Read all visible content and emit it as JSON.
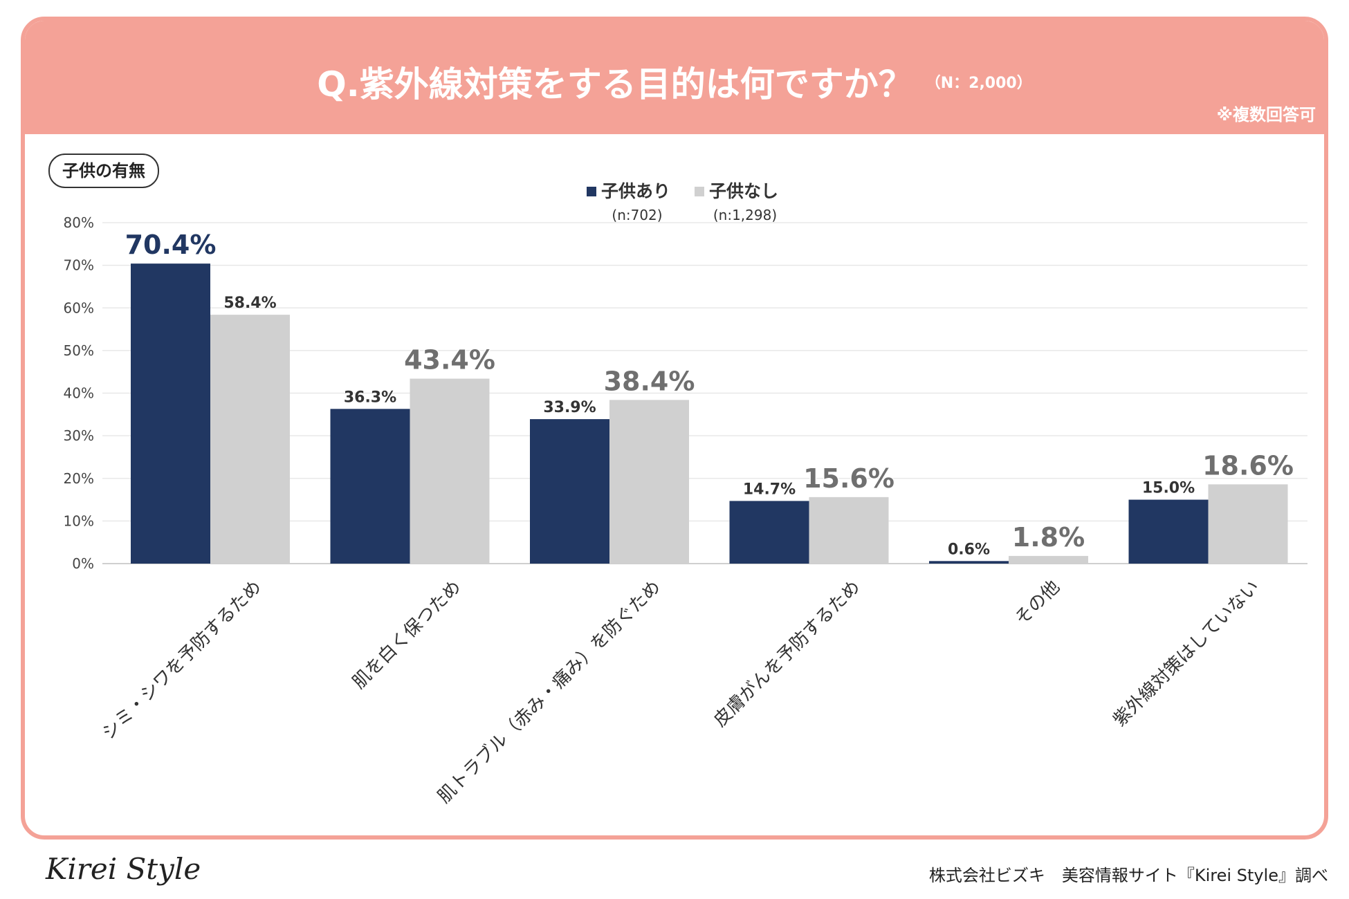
{
  "header": {
    "title": "Q.紫外線対策をする目的は何ですか？",
    "sample_size": "（N：2,000）",
    "multiple_answer_note": "※複数回答可"
  },
  "badge": {
    "label": "子供の有無"
  },
  "footer": {
    "logo_text": "Kirei Style",
    "source": "株式会社ビズキ　美容情報サイト『Kirei Style』調べ"
  },
  "colors": {
    "header_bg": "#f4a297",
    "series_with_children": "#213762",
    "series_without_children": "#d0d0d0"
  },
  "chart_data": {
    "type": "bar",
    "title": "Q.紫外線対策をする目的は何ですか？",
    "categories": [
      "シミ・シワを予防するため",
      "肌を白く保つため",
      "肌トラブル（赤み・痛み）を防ぐため",
      "皮膚がんを予防するため",
      "その他",
      "紫外線対策はしていない"
    ],
    "series": [
      {
        "name": "子供あり",
        "n_label": "(n:702)",
        "color": "#213762",
        "values": [
          70.4,
          36.3,
          33.9,
          14.7,
          0.6,
          15.0
        ],
        "labels": [
          "70.4%",
          "36.3%",
          "33.9%",
          "14.7%",
          "0.6%",
          "15.0%"
        ],
        "highlight": [
          true,
          false,
          false,
          false,
          false,
          false
        ]
      },
      {
        "name": "子供なし",
        "n_label": "(n:1,298)",
        "color": "#d0d0d0",
        "values": [
          58.4,
          43.4,
          38.4,
          15.6,
          1.8,
          18.6
        ],
        "labels": [
          "58.4%",
          "43.4%",
          "38.4%",
          "15.6%",
          "1.8%",
          "18.6%"
        ],
        "highlight": [
          false,
          true,
          true,
          true,
          true,
          true
        ]
      }
    ],
    "ylim": [
      0,
      80
    ],
    "yticks": [
      "0%",
      "10%",
      "20%",
      "30%",
      "40%",
      "50%",
      "60%",
      "70%",
      "80%"
    ],
    "ytick_values": [
      0,
      10,
      20,
      30,
      40,
      50,
      60,
      70,
      80
    ],
    "grid": true,
    "legend_position": "top-center",
    "xlabel": "",
    "ylabel": ""
  }
}
